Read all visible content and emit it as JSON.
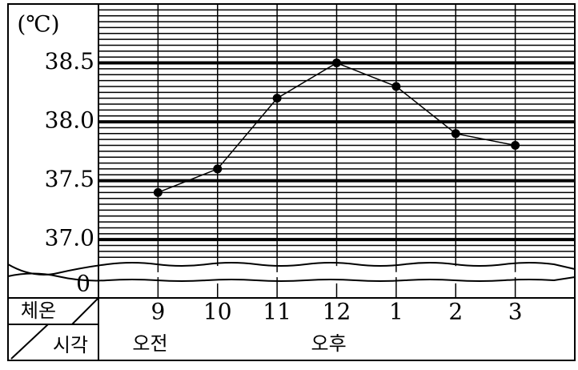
{
  "chart_data": {
    "type": "line",
    "unit_label": "(℃)",
    "row_header_top": "체온",
    "row_header_bottom": "시각",
    "period_labels": [
      {
        "label": "오전",
        "category": 0
      },
      {
        "label": "오후",
        "category": 3
      }
    ],
    "axis_break_label": "0",
    "categories": [
      "9",
      "10",
      "11",
      "12",
      "1",
      "2",
      "3"
    ],
    "values": [
      37.4,
      37.6,
      38.2,
      38.5,
      38.3,
      37.9,
      37.8
    ],
    "color": "#000000",
    "ylim": [
      36.8,
      39.0
    ],
    "yticks": [
      {
        "value": 37.0,
        "label": "37.0"
      },
      37.5,
      {
        "value": 38.0,
        "label": "38.0"
      },
      38.5
    ],
    "minor_grid_step": 0.05,
    "grid": true
  }
}
